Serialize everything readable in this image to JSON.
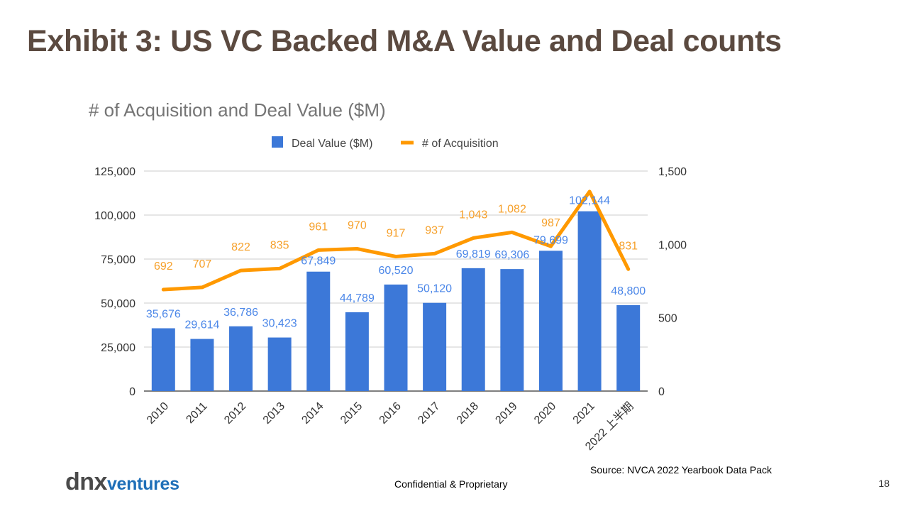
{
  "slide": {
    "title": "Exhibit 3: US VC Backed M&A Value and Deal counts",
    "source": "Source: NVCA 2022 Yearbook Data Pack",
    "footer": "Confidential & Proprietary",
    "page_number": "18",
    "logo": {
      "dnx": "dnx",
      "ventures": "ventures"
    }
  },
  "chart_data": {
    "type": "bar",
    "title": "# of Acquisition and Deal Value ($M)",
    "categories": [
      "2010",
      "2011",
      "2012",
      "2013",
      "2014",
      "2015",
      "2016",
      "2017",
      "2018",
      "2019",
      "2020",
      "2021",
      "2022 上半期"
    ],
    "series": [
      {
        "name": "Deal Value ($M)",
        "type": "bar",
        "axis": "left",
        "color": "#3c78d8",
        "label_color": "#4a86e8",
        "values": [
          35676,
          29614,
          36786,
          30423,
          67849,
          44789,
          60520,
          50120,
          69819,
          69306,
          79699,
          102144,
          48800
        ],
        "labels": [
          "35,676",
          "29,614",
          "36,786",
          "30,423",
          "67,849",
          "44,789",
          "60,520",
          "50,120",
          "69,819",
          "69,306",
          "79,699",
          "102,144",
          "48,800"
        ]
      },
      {
        "name": "# of Acquisition",
        "type": "line",
        "axis": "right",
        "color": "#ff9900",
        "label_color": "#f6a02a",
        "values": [
          692,
          707,
          822,
          835,
          961,
          970,
          917,
          937,
          1043,
          1082,
          987,
          1360,
          831
        ],
        "labels": [
          "692",
          "707",
          "822",
          "835",
          "961",
          "970",
          "917",
          "937",
          "1,043",
          "1,082",
          "987",
          "",
          "831"
        ]
      }
    ],
    "left_axis": {
      "ylim": [
        0,
        125000
      ],
      "ticks": [
        "0",
        "25,000",
        "50,000",
        "75,000",
        "100,000",
        "125,000"
      ]
    },
    "right_axis": {
      "ylim": [
        0,
        1500
      ],
      "ticks": [
        "0",
        "500",
        "1,000",
        "1,500"
      ]
    },
    "grid": true,
    "legend": "top-center"
  }
}
